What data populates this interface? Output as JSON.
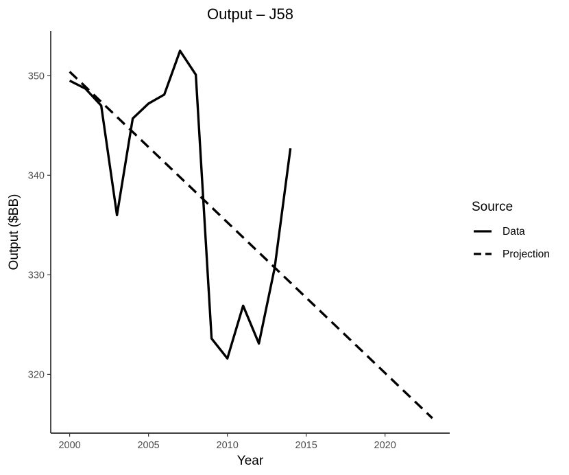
{
  "chart_data": {
    "type": "line",
    "title": "Output – J58",
    "xlabel": "Year",
    "ylabel": "Output ($BB)",
    "xlim": [
      1998.8,
      2024.1
    ],
    "ylim": [
      314.1,
      354.5
    ],
    "x_ticks": [
      2000,
      2005,
      2010,
      2015,
      2020
    ],
    "y_ticks": [
      320,
      330,
      340,
      350
    ],
    "grid": false,
    "legend": {
      "title": "Source",
      "placement": "right",
      "entries": [
        {
          "label": "Data",
          "style": "solid"
        },
        {
          "label": "Projection",
          "style": "dashed"
        }
      ]
    },
    "series": [
      {
        "name": "Data",
        "style": "solid",
        "color": "#000000",
        "x": [
          2000,
          2001,
          2002,
          2003,
          2004,
          2005,
          2006,
          2007,
          2008,
          2009,
          2010,
          2011,
          2012,
          2013,
          2014
        ],
        "y": [
          349.5,
          348.7,
          347.0,
          336.0,
          345.7,
          347.2,
          348.1,
          352.5,
          350.1,
          323.6,
          321.6,
          326.9,
          323.1,
          330.7,
          342.7
        ]
      },
      {
        "name": "Projection",
        "style": "dashed",
        "color": "#000000",
        "x": [
          2000,
          2023
        ],
        "y": [
          350.4,
          315.6
        ]
      }
    ]
  }
}
